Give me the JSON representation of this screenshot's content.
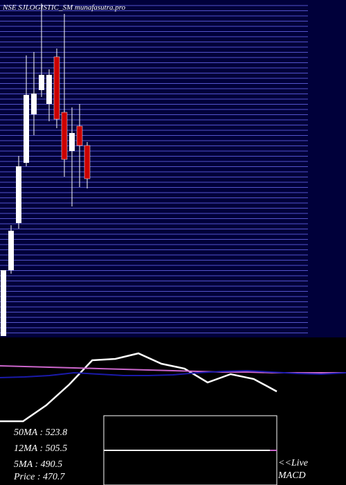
{
  "chart_data": {
    "type": "candlestick",
    "title": "NSE SJLOGISTIC_SM munafasutra.pro",
    "ylim": [
      357.5,
      600
    ],
    "up_color": "#ffffff",
    "down_color": "#cc0000",
    "open": [
      357.5,
      405,
      439,
      482.5,
      517.5,
      535,
      525,
      559,
      519,
      491,
      509,
      495
    ],
    "high": [
      405,
      437.5,
      487.5,
      560,
      562.5,
      597.5,
      550,
      565,
      590,
      522.5,
      525,
      497.5
    ],
    "low": [
      357.5,
      402.5,
      435,
      480,
      502.5,
      530,
      512.5,
      507.5,
      472.5,
      451,
      465,
      464
    ],
    "close": [
      405,
      433.5,
      480,
      531.5,
      532.5,
      546,
      546,
      514,
      485,
      504,
      495,
      471
    ],
    "indicator": {
      "ylim": [
        0,
        210
      ],
      "series": [
        {
          "name": "MACD",
          "color": "#ffffff",
          "values": [
            92,
            92,
            115,
            145,
            180,
            182,
            190,
            175,
            168,
            148,
            160,
            153,
            135
          ]
        },
        {
          "name": "50MA",
          "color": "#cc66cc",
          "values": [
            172,
            171,
            170,
            169,
            168,
            167,
            166,
            165,
            164,
            163,
            163,
            162,
            162,
            162,
            162
          ]
        },
        {
          "name": "12MA",
          "color": "#1a1aaa",
          "values": [
            155,
            156,
            158,
            162,
            160,
            158,
            158,
            159,
            162,
            164,
            165,
            163,
            161,
            160,
            162
          ]
        }
      ]
    },
    "legend": [
      "50MA : 523.8",
      "12MA : 505.5",
      "5MA : 490.5",
      "Price   : 470.7"
    ],
    "live_label": [
      "<<Live",
      "MACD"
    ]
  }
}
